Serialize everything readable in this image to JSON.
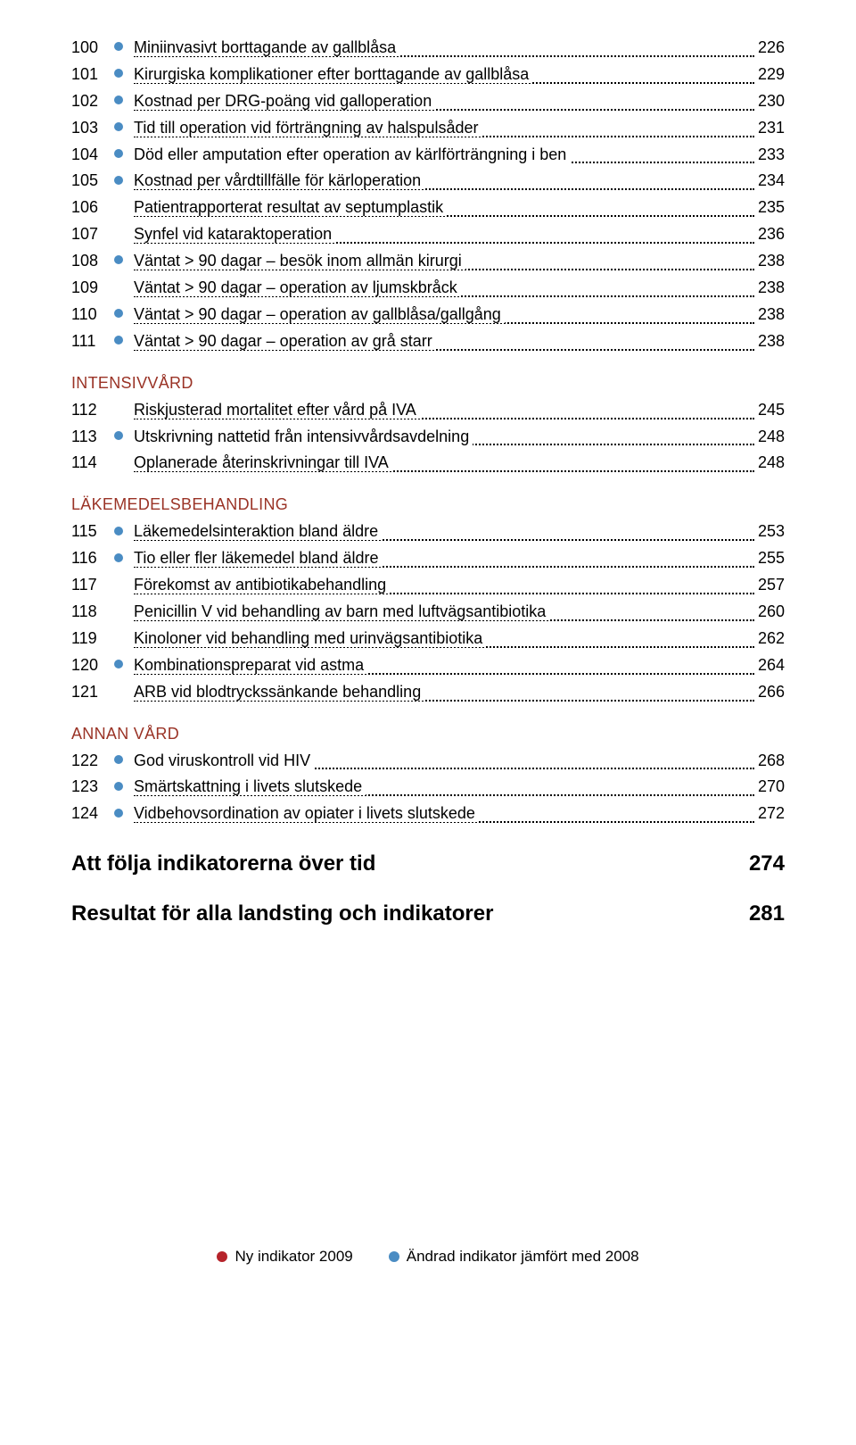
{
  "colors": {
    "new": "#b6232a",
    "changed": "#4a8cc3",
    "section": "#9a3326",
    "text": "#000000"
  },
  "groups": [
    {
      "header": null,
      "items": [
        {
          "n": "100",
          "b": "changed",
          "t": "Miniinvasivt borttagande av gallblåsa",
          "p": "226"
        },
        {
          "n": "101",
          "b": "changed",
          "t": "Kirurgiska komplikationer efter borttagande av gallblåsa",
          "p": "229"
        },
        {
          "n": "102",
          "b": "changed",
          "t": "Kostnad per DRG-poäng vid galloperation",
          "p": "230"
        },
        {
          "n": "103",
          "b": "changed",
          "t": "Tid till operation vid förträngning av halspulsåder",
          "p": "231"
        },
        {
          "n": "104",
          "b": "changed",
          "t": "Död eller amputation efter operation av kärlförträngning i ben",
          "p": "233"
        },
        {
          "n": "105",
          "b": "changed",
          "t": "Kostnad per vårdtillfälle för kärloperation",
          "p": "234"
        },
        {
          "n": "106",
          "b": null,
          "t": "Patientrapporterat resultat av septumplastik",
          "p": "235"
        },
        {
          "n": "107",
          "b": null,
          "t": "Synfel vid kataraktoperation",
          "p": "236"
        },
        {
          "n": "108",
          "b": "changed",
          "t": "Väntat > 90 dagar – besök inom allmän kirurgi",
          "p": "238"
        },
        {
          "n": "109",
          "b": null,
          "t": "Väntat > 90 dagar – operation av ljumskbråck",
          "p": "238"
        },
        {
          "n": "110",
          "b": "changed",
          "t": "Väntat > 90 dagar – operation av gallblåsa/gallgång",
          "p": "238"
        },
        {
          "n": "111",
          "b": "changed",
          "t": "Väntat > 90 dagar – operation av grå starr",
          "p": "238"
        }
      ]
    },
    {
      "header": "INTENSIVVÅRD",
      "items": [
        {
          "n": "112",
          "b": null,
          "t": "Riskjusterad mortalitet efter vård på IVA",
          "p": "245"
        },
        {
          "n": "113",
          "b": "changed",
          "t": "Utskrivning nattetid från intensivvårdsavdelning",
          "p": "248"
        },
        {
          "n": "114",
          "b": null,
          "t": "Oplanerade återinskrivningar till IVA",
          "p": "248"
        }
      ]
    },
    {
      "header": "LÄKEMEDELSBEHANDLING",
      "items": [
        {
          "n": "115",
          "b": "changed",
          "t": "Läkemedelsinteraktion bland äldre",
          "p": "253"
        },
        {
          "n": "116",
          "b": "changed",
          "t": "Tio eller fler läkemedel bland äldre",
          "p": "255"
        },
        {
          "n": "117",
          "b": null,
          "t": "Förekomst av antibiotikabehandling",
          "p": "257"
        },
        {
          "n": "118",
          "b": null,
          "t": "Penicillin V vid behandling av barn med luftvägsantibiotika",
          "p": "260"
        },
        {
          "n": "119",
          "b": null,
          "t": "Kinoloner vid behandling med urinvägsantibiotika",
          "p": "262"
        },
        {
          "n": "120",
          "b": "changed",
          "t": "Kombinationspreparat vid astma",
          "p": "264"
        },
        {
          "n": "121",
          "b": null,
          "t": "ARB vid blodtryckssänkande behandling",
          "p": "266"
        }
      ]
    },
    {
      "header": "ANNAN VÅRD",
      "items": [
        {
          "n": "122",
          "b": "changed",
          "t": "God viruskontroll vid HIV",
          "p": "268"
        },
        {
          "n": "123",
          "b": "changed",
          "t": "Smärtskattning i livets slutskede",
          "p": "270"
        },
        {
          "n": "124",
          "b": "changed",
          "t": "Vidbehovsordination av opiater i livets slutskede",
          "p": "272"
        }
      ]
    }
  ],
  "bigs": [
    {
      "t": "Att följa indikatorerna över tid",
      "p": "274"
    },
    {
      "t": "Resultat för alla landsting och indikatorer",
      "p": "281"
    }
  ],
  "legend": {
    "new": "Ny indikator 2009",
    "changed": "Ändrad indikator jämfört med 2008"
  }
}
